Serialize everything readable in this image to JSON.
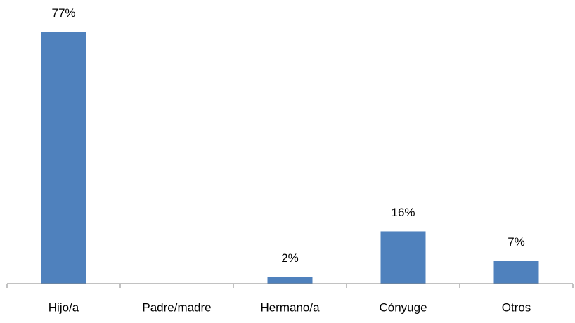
{
  "chart_data": {
    "type": "bar",
    "categories": [
      "Hijo/a",
      "Padre/madre",
      "Hermano/a",
      "Cónyuge",
      "Otros"
    ],
    "values": [
      77,
      null,
      2,
      16,
      7
    ],
    "value_labels": [
      "77%",
      null,
      "2%",
      "16%",
      "7%"
    ],
    "color": "#4f81bd",
    "ylim": [
      0,
      85
    ]
  }
}
